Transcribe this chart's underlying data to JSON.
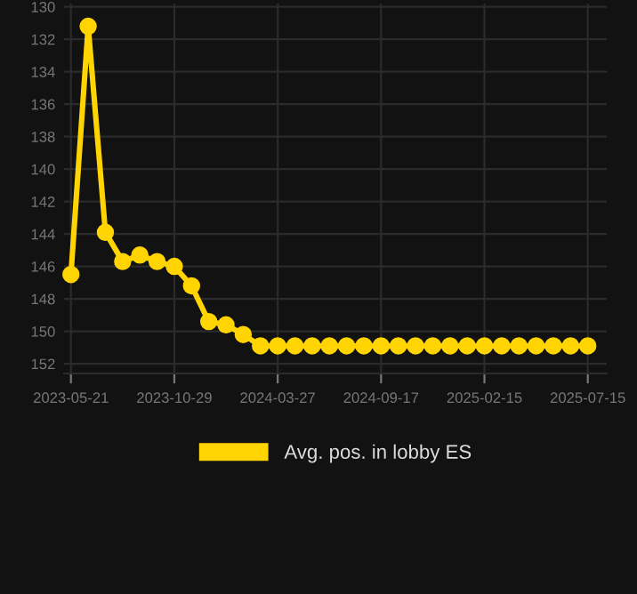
{
  "chart_data": {
    "type": "line",
    "categories": [
      "2023-05-21",
      null,
      null,
      null,
      null,
      null,
      "2023-10-29",
      null,
      null,
      null,
      null,
      null,
      "2024-03-27",
      null,
      null,
      null,
      null,
      null,
      "2024-09-17",
      null,
      null,
      null,
      null,
      null,
      "2025-02-15",
      null,
      null,
      null,
      null,
      null,
      "2025-07-15"
    ],
    "series": [
      {
        "name": "Avg. pos. in lobby ES",
        "color": "#ffd400",
        "values": [
          146.5,
          131.2,
          143.9,
          145.7,
          145.3,
          145.7,
          146.0,
          147.2,
          149.4,
          149.6,
          150.2,
          150.9,
          150.9,
          150.9,
          150.9,
          150.9,
          150.9,
          150.9,
          150.9,
          150.9,
          150.9,
          150.9,
          150.9,
          150.9,
          150.9,
          150.9,
          150.9,
          150.9,
          150.9,
          150.9,
          150.9
        ]
      }
    ],
    "ylim": [
      152.6,
      129.8
    ],
    "yticks": [
      130,
      132,
      134,
      136,
      138,
      140,
      142,
      144,
      146,
      148,
      150,
      152
    ],
    "grid": true,
    "legend": "bottom",
    "marker": "circle",
    "line_style": "solid"
  }
}
